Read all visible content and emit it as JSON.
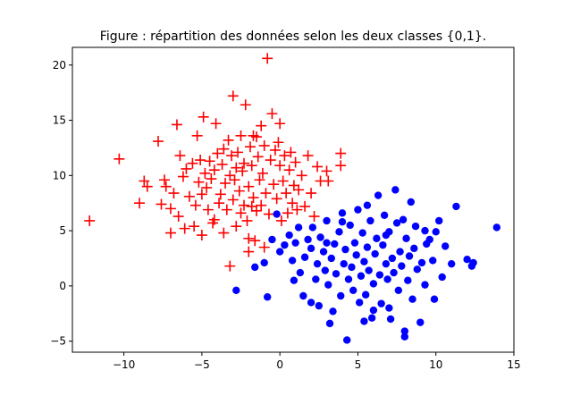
{
  "chart_data": {
    "type": "scatter",
    "title": "Figure : répartition des données selon les deux classes {0,1}.",
    "xlabel": "",
    "ylabel": "",
    "xlim": [
      -13.3,
      15.0
    ],
    "ylim": [
      -6.0,
      21.6
    ],
    "xticks": [
      -10,
      -5,
      0,
      5,
      10,
      15
    ],
    "yticks": [
      -5,
      0,
      5,
      10,
      15,
      20
    ],
    "grid": false,
    "legend": "none",
    "series": [
      {
        "marker": "plus",
        "color": "#ff0000",
        "points": [
          [
            -12.2,
            5.9
          ],
          [
            -10.3,
            11.5
          ],
          [
            -9.0,
            7.5
          ],
          [
            -8.7,
            9.5
          ],
          [
            -8.5,
            9.0
          ],
          [
            -7.8,
            13.1
          ],
          [
            -7.6,
            7.4
          ],
          [
            -7.4,
            9.6
          ],
          [
            -7.3,
            9.0
          ],
          [
            -7.0,
            7.0
          ],
          [
            -7.0,
            4.8
          ],
          [
            -6.8,
            8.4
          ],
          [
            -6.6,
            14.6
          ],
          [
            -6.5,
            6.3
          ],
          [
            -6.4,
            11.8
          ],
          [
            -6.2,
            9.9
          ],
          [
            -6.1,
            5.2
          ],
          [
            -6.0,
            10.6
          ],
          [
            -5.8,
            8.1
          ],
          [
            -5.6,
            11.1
          ],
          [
            -5.5,
            5.4
          ],
          [
            -5.4,
            7.3
          ],
          [
            -5.3,
            13.6
          ],
          [
            -5.2,
            9.4
          ],
          [
            -5.1,
            11.4
          ],
          [
            -5.0,
            8.3
          ],
          [
            -5.0,
            4.6
          ],
          [
            -4.9,
            15.3
          ],
          [
            -4.8,
            10.2
          ],
          [
            -4.7,
            8.9
          ],
          [
            -4.6,
            6.9
          ],
          [
            -4.5,
            11.3
          ],
          [
            -4.4,
            9.7
          ],
          [
            -4.3,
            5.7
          ],
          [
            -4.2,
            10.5
          ],
          [
            -4.1,
            14.7
          ],
          [
            -4.0,
            12.0
          ],
          [
            -3.9,
            7.5
          ],
          [
            -3.8,
            8.3
          ],
          [
            -3.7,
            11.0
          ],
          [
            -3.6,
            4.8
          ],
          [
            -3.5,
            9.3
          ],
          [
            -3.4,
            6.9
          ],
          [
            -3.3,
            13.2
          ],
          [
            -3.2,
            10.0
          ],
          [
            -3.2,
            1.8
          ],
          [
            -3.1,
            11.8
          ],
          [
            -3.0,
            7.8
          ],
          [
            -3.0,
            17.2
          ],
          [
            -2.9,
            9.6
          ],
          [
            -2.8,
            5.4
          ],
          [
            -2.7,
            12.1
          ],
          [
            -2.6,
            8.6
          ],
          [
            -2.5,
            13.6
          ],
          [
            -2.5,
            6.6
          ],
          [
            -2.4,
            10.4
          ],
          [
            -2.3,
            7.3
          ],
          [
            -2.3,
            11.1
          ],
          [
            -2.2,
            16.4
          ],
          [
            -2.1,
            5.9
          ],
          [
            -2.0,
            9.0
          ],
          [
            -2.0,
            3.1
          ],
          [
            -1.9,
            12.6
          ],
          [
            -1.8,
            7.2
          ],
          [
            -1.8,
            10.9
          ],
          [
            -1.7,
            8.0
          ],
          [
            -1.6,
            4.1
          ],
          [
            -1.5,
            13.5
          ],
          [
            -1.5,
            6.8
          ],
          [
            -1.4,
            11.7
          ],
          [
            -1.3,
            9.6
          ],
          [
            -1.2,
            7.3
          ],
          [
            -1.2,
            14.5
          ],
          [
            -1.1,
            10.2
          ],
          [
            -1.0,
            3.5
          ],
          [
            -1.0,
            12.7
          ],
          [
            -0.9,
            8.4
          ],
          [
            -0.8,
            20.6
          ],
          [
            -0.7,
            6.5
          ],
          [
            -0.6,
            11.4
          ],
          [
            -0.5,
            15.6
          ],
          [
            -0.4,
            9.2
          ],
          [
            -0.3,
            12.3
          ],
          [
            -0.2,
            7.9
          ],
          [
            -0.1,
            13.0
          ],
          [
            0.0,
            10.9
          ],
          [
            0.0,
            14.7
          ],
          [
            0.1,
            5.9
          ],
          [
            0.2,
            9.5
          ],
          [
            0.3,
            11.8
          ],
          [
            0.4,
            8.4
          ],
          [
            0.5,
            6.6
          ],
          [
            0.6,
            10.5
          ],
          [
            0.7,
            12.1
          ],
          [
            0.8,
            7.5
          ],
          [
            0.9,
            9.1
          ],
          [
            1.0,
            11.2
          ],
          [
            1.1,
            6.9
          ],
          [
            1.2,
            8.7
          ],
          [
            1.4,
            10.0
          ],
          [
            1.6,
            7.2
          ],
          [
            1.8,
            11.8
          ],
          [
            2.0,
            8.4
          ],
          [
            2.2,
            6.3
          ],
          [
            2.4,
            10.8
          ],
          [
            2.6,
            9.5
          ],
          [
            3.0,
            10.4
          ],
          [
            3.1,
            9.5
          ],
          [
            3.9,
            12.0
          ],
          [
            3.9,
            10.9
          ],
          [
            -1.7,
            13.6
          ],
          [
            -2.8,
            10.7
          ],
          [
            -3.6,
            12.4
          ],
          [
            -4.2,
            6.0
          ],
          [
            -2.0,
            4.3
          ]
        ]
      },
      {
        "marker": "circle",
        "color": "#0000ff",
        "points": [
          [
            -2.8,
            -0.4
          ],
          [
            -1.6,
            1.7
          ],
          [
            -1.0,
            2.1
          ],
          [
            -0.8,
            -1.0
          ],
          [
            -0.5,
            4.2
          ],
          [
            -0.2,
            6.5
          ],
          [
            0.0,
            3.1
          ],
          [
            0.3,
            3.7
          ],
          [
            0.6,
            4.6
          ],
          [
            0.8,
            2.3
          ],
          [
            0.9,
            0.5
          ],
          [
            1.0,
            3.9
          ],
          [
            1.2,
            5.3
          ],
          [
            1.3,
            1.2
          ],
          [
            1.5,
            -0.9
          ],
          [
            1.6,
            2.6
          ],
          [
            1.8,
            4.2
          ],
          [
            2.0,
            3.4
          ],
          [
            2.1,
            5.3
          ],
          [
            2.3,
            0.6
          ],
          [
            2.4,
            2.0
          ],
          [
            2.5,
            -1.8
          ],
          [
            2.6,
            4.4
          ],
          [
            2.8,
            3.1
          ],
          [
            2.9,
            1.4
          ],
          [
            3.0,
            5.9
          ],
          [
            3.1,
            0.1
          ],
          [
            3.3,
            2.5
          ],
          [
            3.4,
            -2.3
          ],
          [
            3.5,
            3.8
          ],
          [
            3.6,
            1.1
          ],
          [
            3.8,
            4.9
          ],
          [
            3.9,
            -0.9
          ],
          [
            4.0,
            6.6
          ],
          [
            4.1,
            2.0
          ],
          [
            4.2,
            3.3
          ],
          [
            4.3,
            -4.9
          ],
          [
            4.4,
            0.6
          ],
          [
            4.5,
            5.5
          ],
          [
            4.6,
            1.7
          ],
          [
            4.7,
            -0.4
          ],
          [
            4.8,
            3.9
          ],
          [
            4.9,
            2.8
          ],
          [
            5.0,
            6.9
          ],
          [
            5.1,
            -1.5
          ],
          [
            5.2,
            0.9
          ],
          [
            5.3,
            4.8
          ],
          [
            5.4,
            2.2
          ],
          [
            5.5,
            -0.8
          ],
          [
            5.6,
            3.5
          ],
          [
            5.7,
            1.4
          ],
          [
            5.8,
            5.9
          ],
          [
            5.9,
            -2.9
          ],
          [
            6.0,
            0.2
          ],
          [
            6.1,
            2.9
          ],
          [
            6.2,
            4.3
          ],
          [
            6.3,
            8.2
          ],
          [
            6.4,
            1.0
          ],
          [
            6.5,
            -1.6
          ],
          [
            6.6,
            3.7
          ],
          [
            6.7,
            6.4
          ],
          [
            6.8,
            2.0
          ],
          [
            6.9,
            0.6
          ],
          [
            7.0,
            4.9
          ],
          [
            7.1,
            -3.0
          ],
          [
            7.2,
            2.5
          ],
          [
            7.3,
            1.2
          ],
          [
            7.4,
            8.7
          ],
          [
            7.5,
            5.7
          ],
          [
            7.6,
            -0.4
          ],
          [
            7.7,
            3.1
          ],
          [
            7.8,
            1.8
          ],
          [
            7.9,
            6.0
          ],
          [
            8.0,
            -4.6
          ],
          [
            8.1,
            4.3
          ],
          [
            8.2,
            0.5
          ],
          [
            8.3,
            2.7
          ],
          [
            8.4,
            7.6
          ],
          [
            8.5,
            -1.2
          ],
          [
            8.6,
            3.4
          ],
          [
            8.7,
            5.4
          ],
          [
            8.8,
            1.5
          ],
          [
            9.0,
            -3.3
          ],
          [
            9.1,
            2.1
          ],
          [
            9.3,
            0.1
          ],
          [
            9.4,
            3.8
          ],
          [
            9.6,
            4.2
          ],
          [
            9.8,
            2.3
          ],
          [
            9.9,
            -1.2
          ],
          [
            10.0,
            4.9
          ],
          [
            10.2,
            5.9
          ],
          [
            10.4,
            0.8
          ],
          [
            10.6,
            3.6
          ],
          [
            11.0,
            2.0
          ],
          [
            11.3,
            7.2
          ],
          [
            12.0,
            2.4
          ],
          [
            12.3,
            1.8
          ],
          [
            12.4,
            2.1
          ],
          [
            13.9,
            5.3
          ],
          [
            8.0,
            -4.1
          ],
          [
            6.0,
            -2.2
          ],
          [
            3.2,
            -3.4
          ],
          [
            5.4,
            -3.2
          ],
          [
            2.0,
            -1.5
          ],
          [
            7.0,
            -2.0
          ],
          [
            4.0,
            5.8
          ],
          [
            5.6,
            7.3
          ],
          [
            3.0,
            3.9
          ],
          [
            6.8,
            4.6
          ],
          [
            9.3,
            5.0
          ]
        ]
      }
    ]
  }
}
